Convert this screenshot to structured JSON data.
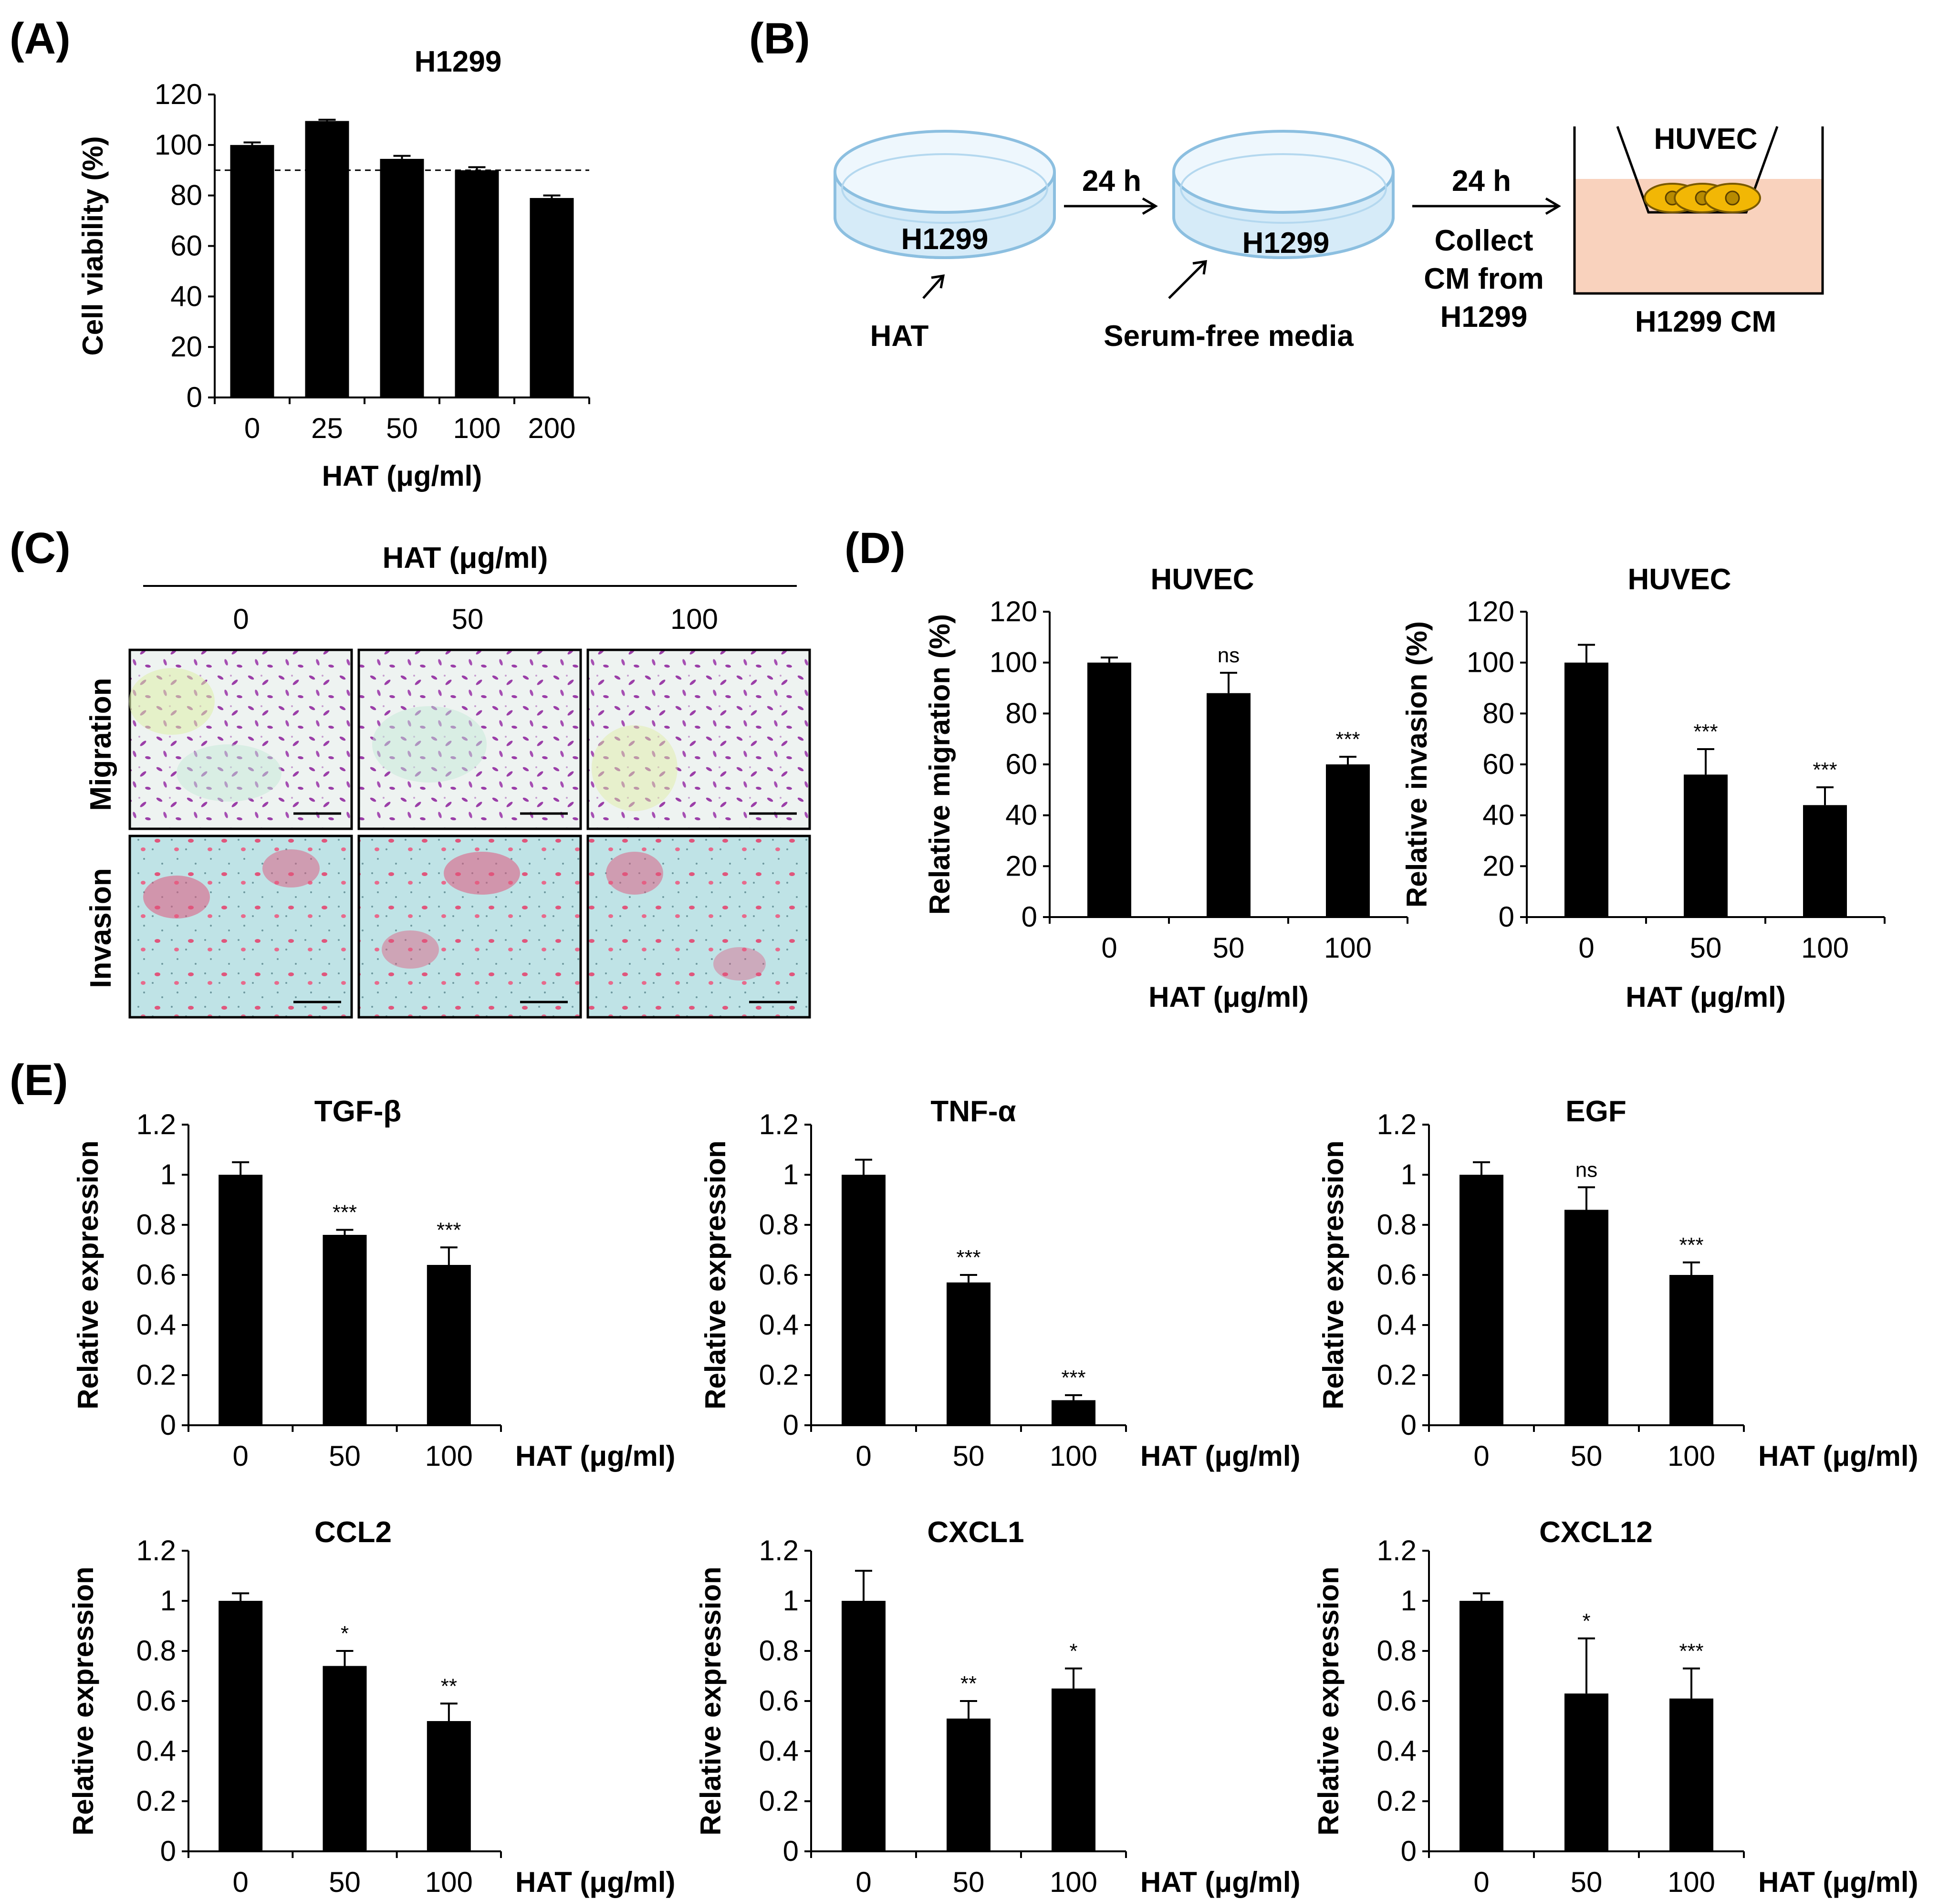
{
  "panel_labels": {
    "a": "(A)",
    "b": "(B)",
    "c": "(C)",
    "d": "(D)",
    "e": "(E)"
  },
  "diagram": {
    "dish1_label": "H1299",
    "dish2_label": "H1299",
    "arrow1_label": "24 h",
    "arrow2_label": "24 h",
    "hat_label": "HAT",
    "serum_label": "Serum-free media",
    "collect_line1": "Collect",
    "collect_line2": "CM from",
    "collect_line3": "H1299",
    "transwell_top": "HUVEC",
    "transwell_bottom": "H1299 CM",
    "colors": {
      "dish": "#cfe6f6",
      "dish_edge": "#8cbfe0",
      "medium": "#f9d2bd",
      "cell": "#f2b705",
      "cell_edge": "#7a5a00"
    }
  },
  "microscopy": {
    "header": "HAT (μg/ml)",
    "columns": [
      "0",
      "50",
      "100"
    ],
    "rows": [
      "Migration",
      "Invasion"
    ],
    "colors": {
      "migration_bg": "#eef3f1",
      "migration_cell": "#9b3ea8",
      "invasion_bg": "#bfe3e6",
      "invasion_cell": "#e0567c"
    }
  },
  "chart_data": [
    {
      "id": "A",
      "type": "bar",
      "title": "H1299",
      "categories": [
        "0",
        "25",
        "50",
        "100",
        "200"
      ],
      "values": [
        100,
        109.5,
        94.5,
        90,
        79
      ],
      "errors": [
        1,
        0.5,
        1.2,
        1.2,
        1
      ],
      "annotations": [
        "",
        "",
        "",
        "",
        ""
      ],
      "xlabel": "HAT (μg/ml)",
      "ylabel": "Cell viability (%)",
      "ylim": [
        0,
        120
      ],
      "yticks": [
        "0",
        "20",
        "40",
        "60",
        "80",
        "100",
        "120"
      ],
      "reference_line": 90
    },
    {
      "id": "D1",
      "type": "bar",
      "title": "HUVEC",
      "categories": [
        "0",
        "50",
        "100"
      ],
      "values": [
        100,
        88,
        60
      ],
      "errors": [
        2,
        8,
        3
      ],
      "annotations": [
        "",
        "ns",
        "***"
      ],
      "xlabel": "HAT (μg/ml)",
      "ylabel": "Relative migration (%)",
      "ylim": [
        0,
        120
      ],
      "yticks": [
        "0",
        "20",
        "40",
        "60",
        "80",
        "100",
        "120"
      ]
    },
    {
      "id": "D2",
      "type": "bar",
      "title": "HUVEC",
      "categories": [
        "0",
        "50",
        "100"
      ],
      "values": [
        100,
        56,
        44
      ],
      "errors": [
        7,
        10,
        7
      ],
      "annotations": [
        "",
        "***",
        "***"
      ],
      "xlabel": "HAT (μg/ml)",
      "ylabel": "Relative invasion (%)",
      "ylim": [
        0,
        120
      ],
      "yticks": [
        "0",
        "20",
        "40",
        "60",
        "80",
        "100",
        "120"
      ]
    },
    {
      "id": "E1",
      "type": "bar",
      "title": "TGF-β",
      "categories": [
        "0",
        "50",
        "100"
      ],
      "values": [
        1.0,
        0.76,
        0.64
      ],
      "errors": [
        0.05,
        0.02,
        0.07
      ],
      "annotations": [
        "",
        "***",
        "***"
      ],
      "xlabel": "HAT (μg/ml)",
      "ylabel": "Relative expression",
      "ylim": [
        0,
        1.2
      ],
      "yticks": [
        "0",
        "0.2",
        "0.4",
        "0.6",
        "0.8",
        "1",
        "1.2"
      ]
    },
    {
      "id": "E2",
      "type": "bar",
      "title": "TNF-α",
      "categories": [
        "0",
        "50",
        "100"
      ],
      "values": [
        1.0,
        0.57,
        0.1
      ],
      "errors": [
        0.06,
        0.03,
        0.02
      ],
      "annotations": [
        "",
        "***",
        "***"
      ],
      "xlabel": "HAT (μg/ml)",
      "ylabel": "Relative expression",
      "ylim": [
        0,
        1.2
      ],
      "yticks": [
        "0",
        "0.2",
        "0.4",
        "0.6",
        "0.8",
        "1",
        "1.2"
      ]
    },
    {
      "id": "E3",
      "type": "bar",
      "title": "EGF",
      "categories": [
        "0",
        "50",
        "100"
      ],
      "values": [
        1.0,
        0.86,
        0.6
      ],
      "errors": [
        0.05,
        0.09,
        0.05
      ],
      "annotations": [
        "",
        "ns",
        "***"
      ],
      "xlabel": "HAT (μg/ml)",
      "ylabel": "Relative expression",
      "ylim": [
        0,
        1.2
      ],
      "yticks": [
        "0",
        "0.2",
        "0.4",
        "0.6",
        "0.8",
        "1",
        "1.2"
      ]
    },
    {
      "id": "E4",
      "type": "bar",
      "title": "CCL2",
      "categories": [
        "0",
        "50",
        "100"
      ],
      "values": [
        1.0,
        0.74,
        0.52
      ],
      "errors": [
        0.03,
        0.06,
        0.07
      ],
      "annotations": [
        "",
        "*",
        "**"
      ],
      "xlabel": "HAT (μg/ml)",
      "ylabel": "Relative expression",
      "ylim": [
        0,
        1.2
      ],
      "yticks": [
        "0",
        "0.2",
        "0.4",
        "0.6",
        "0.8",
        "1",
        "1.2"
      ]
    },
    {
      "id": "E5",
      "type": "bar",
      "title": "CXCL1",
      "categories": [
        "0",
        "50",
        "100"
      ],
      "values": [
        1.0,
        0.53,
        0.65
      ],
      "errors": [
        0.12,
        0.07,
        0.08
      ],
      "annotations": [
        "",
        "**",
        "*"
      ],
      "xlabel": "HAT (μg/ml)",
      "ylabel": "Relative expression",
      "ylim": [
        0,
        1.2
      ],
      "yticks": [
        "0",
        "0.2",
        "0.4",
        "0.6",
        "0.8",
        "1",
        "1.2"
      ]
    },
    {
      "id": "E6",
      "type": "bar",
      "title": "CXCL12",
      "categories": [
        "0",
        "50",
        "100"
      ],
      "values": [
        1.0,
        0.63,
        0.61
      ],
      "errors": [
        0.03,
        0.22,
        0.12
      ],
      "annotations": [
        "",
        "*",
        "***"
      ],
      "xlabel": "HAT (μg/ml)",
      "ylabel": "Relative expression",
      "ylim": [
        0,
        1.2
      ],
      "yticks": [
        "0",
        "0.2",
        "0.4",
        "0.6",
        "0.8",
        "1",
        "1.2"
      ]
    }
  ]
}
